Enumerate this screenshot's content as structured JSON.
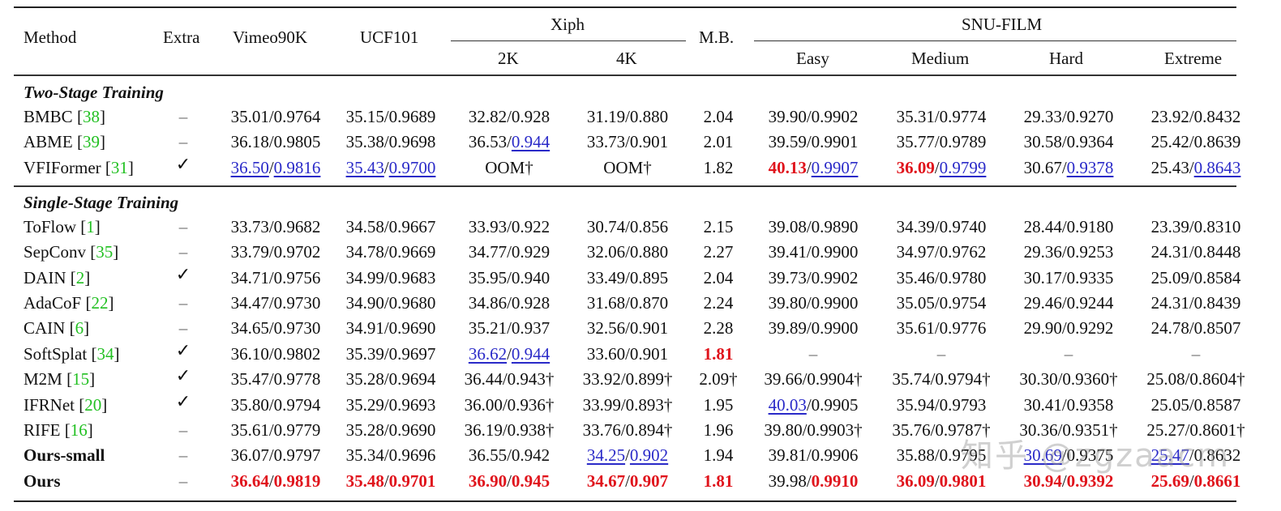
{
  "table": {
    "headers": {
      "method": "Method",
      "extra": "Extra",
      "vimeo": "Vimeo90K",
      "ucf": "UCF101",
      "xiph": "Xiph",
      "xiph_2k": "2K",
      "xiph_4k": "4K",
      "mb": "M.B.",
      "snu": "SNU-FILM",
      "easy": "Easy",
      "medium": "Medium",
      "hard": "Hard",
      "extreme": "Extreme"
    },
    "sections": [
      {
        "title": "Two-Stage Training",
        "rows": [
          {
            "method": "BMBC",
            "ref": "38",
            "extra": "–",
            "vimeo": "35.01/0.9764",
            "ucf": "35.15/0.9689",
            "xiph_2k": "32.82/0.928",
            "xiph_4k": "31.19/0.880",
            "mb": "2.04",
            "easy": "39.90/0.9902",
            "medium": "35.31/0.9774",
            "hard": "29.33/0.9270",
            "extreme": "23.92/0.8432"
          },
          {
            "method": "ABME",
            "ref": "39",
            "extra": "–",
            "vimeo": "36.18/0.9805",
            "ucf": "35.38/0.9698",
            "xiph_2k": "36.53/0.944",
            "xiph_4k": "33.73/0.901",
            "mb": "2.01",
            "easy": "39.59/0.9901",
            "medium": "35.77/0.9789",
            "hard": "30.58/0.9364",
            "extreme": "25.42/0.8639"
          },
          {
            "method": "VFIFormer",
            "ref": "31",
            "extra": "✓",
            "vimeo": "36.50/0.9816",
            "ucf": "35.43/0.9700",
            "xiph_2k": "OOM†",
            "xiph_4k": "OOM†",
            "mb": "1.82",
            "easy": "40.13/0.9907",
            "medium": "36.09/0.9799",
            "hard": "30.67/0.9378",
            "extreme": "25.43/0.8643"
          }
        ]
      },
      {
        "title": "Single-Stage Training",
        "rows": [
          {
            "method": "ToFlow",
            "ref": "1",
            "extra": "–",
            "vimeo": "33.73/0.9682",
            "ucf": "34.58/0.9667",
            "xiph_2k": "33.93/0.922",
            "xiph_4k": "30.74/0.856",
            "mb": "2.15",
            "easy": "39.08/0.9890",
            "medium": "34.39/0.9740",
            "hard": "28.44/0.9180",
            "extreme": "23.39/0.8310"
          },
          {
            "method": "SepConv",
            "ref": "35",
            "extra": "–",
            "vimeo": "33.79/0.9702",
            "ucf": "34.78/0.9669",
            "xiph_2k": "34.77/0.929",
            "xiph_4k": "32.06/0.880",
            "mb": "2.27",
            "easy": "39.41/0.9900",
            "medium": "34.97/0.9762",
            "hard": "29.36/0.9253",
            "extreme": "24.31/0.8448"
          },
          {
            "method": "DAIN",
            "ref": "2",
            "extra": "✓",
            "vimeo": "34.71/0.9756",
            "ucf": "34.99/0.9683",
            "xiph_2k": "35.95/0.940",
            "xiph_4k": "33.49/0.895",
            "mb": "2.04",
            "easy": "39.73/0.9902",
            "medium": "35.46/0.9780",
            "hard": "30.17/0.9335",
            "extreme": "25.09/0.8584"
          },
          {
            "method": "AdaCoF",
            "ref": "22",
            "extra": "–",
            "vimeo": "34.47/0.9730",
            "ucf": "34.90/0.9680",
            "xiph_2k": "34.86/0.928",
            "xiph_4k": "31.68/0.870",
            "mb": "2.24",
            "easy": "39.80/0.9900",
            "medium": "35.05/0.9754",
            "hard": "29.46/0.9244",
            "extreme": "24.31/0.8439"
          },
          {
            "method": "CAIN",
            "ref": "6",
            "extra": "–",
            "vimeo": "34.65/0.9730",
            "ucf": "34.91/0.9690",
            "xiph_2k": "35.21/0.937",
            "xiph_4k": "32.56/0.901",
            "mb": "2.28",
            "easy": "39.89/0.9900",
            "medium": "35.61/0.9776",
            "hard": "29.90/0.9292",
            "extreme": "24.78/0.8507"
          },
          {
            "method": "SoftSplat",
            "ref": "34",
            "extra": "✓",
            "vimeo": "36.10/0.9802",
            "ucf": "35.39/0.9697",
            "xiph_2k": "36.62/0.944",
            "xiph_4k": "33.60/0.901",
            "mb": "1.81",
            "easy": "–",
            "medium": "–",
            "hard": "–",
            "extreme": "–"
          },
          {
            "method": "M2M",
            "ref": "15",
            "extra": "✓",
            "vimeo": "35.47/0.9778",
            "ucf": "35.28/0.9694",
            "xiph_2k": "36.44/0.943†",
            "xiph_4k": "33.92/0.899†",
            "mb": "2.09†",
            "easy": "39.66/0.9904†",
            "medium": "35.74/0.9794†",
            "hard": "30.30/0.9360†",
            "extreme": "25.08/0.8604†"
          },
          {
            "method": "IFRNet",
            "ref": "20",
            "extra": "✓",
            "vimeo": "35.80/0.9794",
            "ucf": "35.29/0.9693",
            "xiph_2k": "36.00/0.936†",
            "xiph_4k": "33.99/0.893†",
            "mb": "1.95",
            "easy": "40.03/0.9905",
            "medium": "35.94/0.9793",
            "hard": "30.41/0.9358",
            "extreme": "25.05/0.8587"
          },
          {
            "method": "RIFE",
            "ref": "16",
            "extra": "–",
            "vimeo": "35.61/0.9779",
            "ucf": "35.28/0.9690",
            "xiph_2k": "36.19/0.938†",
            "xiph_4k": "33.76/0.894†",
            "mb": "1.96",
            "easy": "39.80/0.9903†",
            "medium": "35.76/0.9787†",
            "hard": "30.36/0.9351†",
            "extreme": "25.27/0.8601†"
          },
          {
            "method": "Ours-small",
            "ref": "",
            "extra": "–",
            "vimeo": "36.07/0.9797",
            "ucf": "35.34/0.9696",
            "xiph_2k": "36.55/0.942",
            "xiph_4k": "34.25/0.902",
            "mb": "1.94",
            "easy": "39.81/0.9906",
            "medium": "35.88/0.9795",
            "hard": "30.69/0.9375",
            "extreme": "25.47/0.8632"
          },
          {
            "method": "Ours",
            "ref": "",
            "extra": "–",
            "vimeo": "36.64/0.9819",
            "ucf": "35.48/0.9701",
            "xiph_2k": "36.90/0.945",
            "xiph_4k": "34.67/0.907",
            "mb": "1.81",
            "easy": "39.98/0.9910",
            "medium": "36.09/0.9801",
            "hard": "30.94/0.9392",
            "extreme": "25.69/0.8661"
          }
        ]
      }
    ]
  },
  "colors": {
    "best": "#e0141c",
    "second": "#2a2ac8",
    "reference": "#22c022"
  },
  "watermark": "知乎 @zgzaacm"
}
